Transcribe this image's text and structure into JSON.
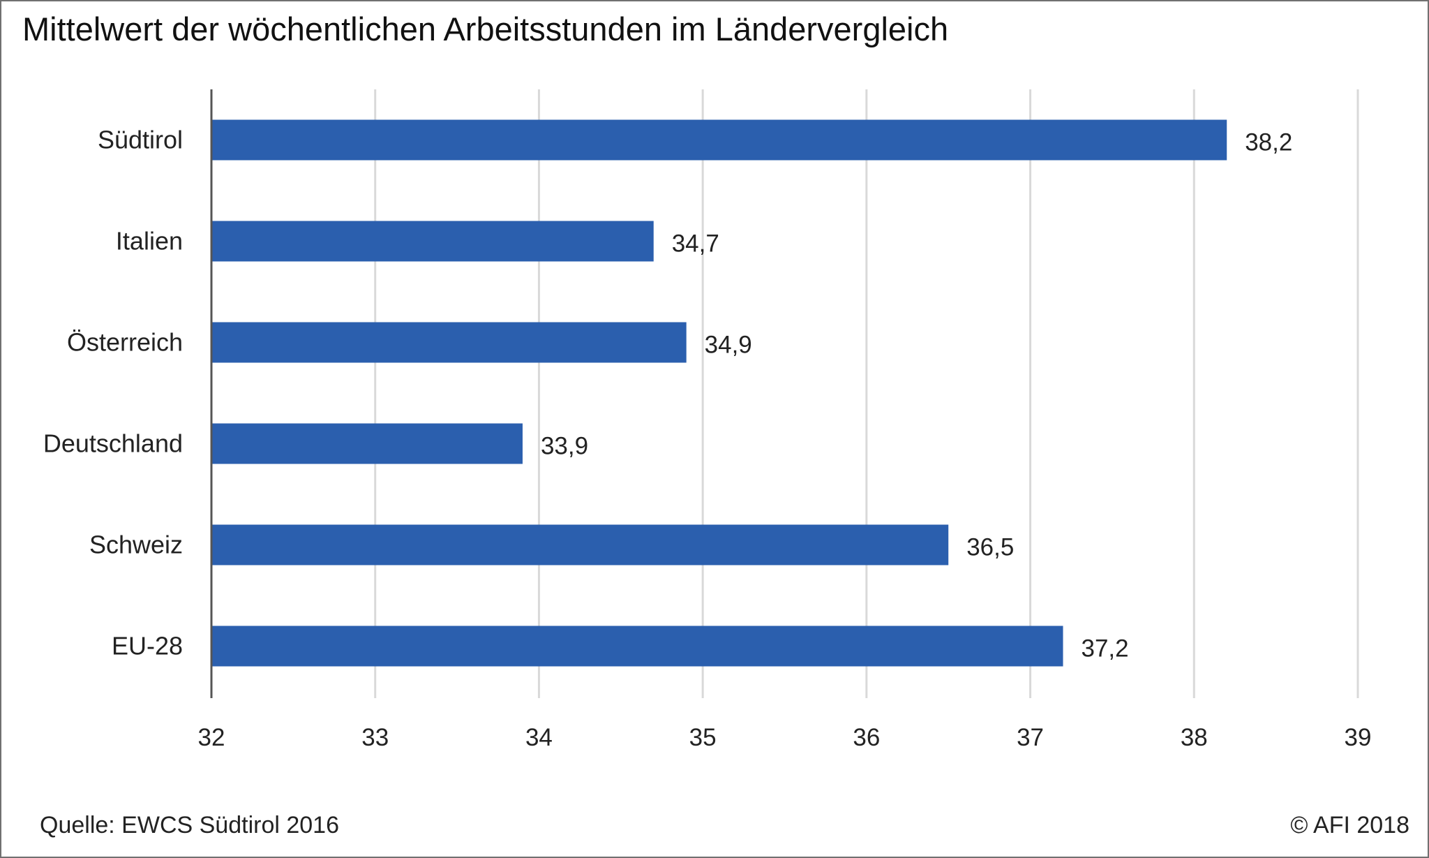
{
  "chart_data": {
    "type": "bar",
    "orientation": "horizontal",
    "title": "Mittelwert der wöchentlichen Arbeitsstunden im Ländervergleich",
    "categories": [
      "Südtirol",
      "Italien",
      "Österreich",
      "Deutschland",
      "Schweiz",
      "EU-28"
    ],
    "values": [
      38.2,
      34.7,
      34.9,
      33.9,
      36.5,
      37.2
    ],
    "value_labels": [
      "38,2",
      "34,7",
      "34,9",
      "33,9",
      "36,5",
      "37,2"
    ],
    "xlim": [
      32,
      39
    ],
    "x_ticks": [
      32,
      33,
      34,
      35,
      36,
      37,
      38,
      39
    ],
    "x_tick_labels": [
      "32",
      "33",
      "34",
      "35",
      "36",
      "37",
      "38",
      "39"
    ],
    "xlabel": "",
    "ylabel": "",
    "grid": "vertical",
    "legend": "none",
    "bar_color": "#2b5fae",
    "grid_color": "#d9d9d9",
    "axis_color": "#555555"
  },
  "footer": {
    "source": "Quelle: EWCS Südtirol 2016",
    "copyright": "© AFI 2018"
  }
}
